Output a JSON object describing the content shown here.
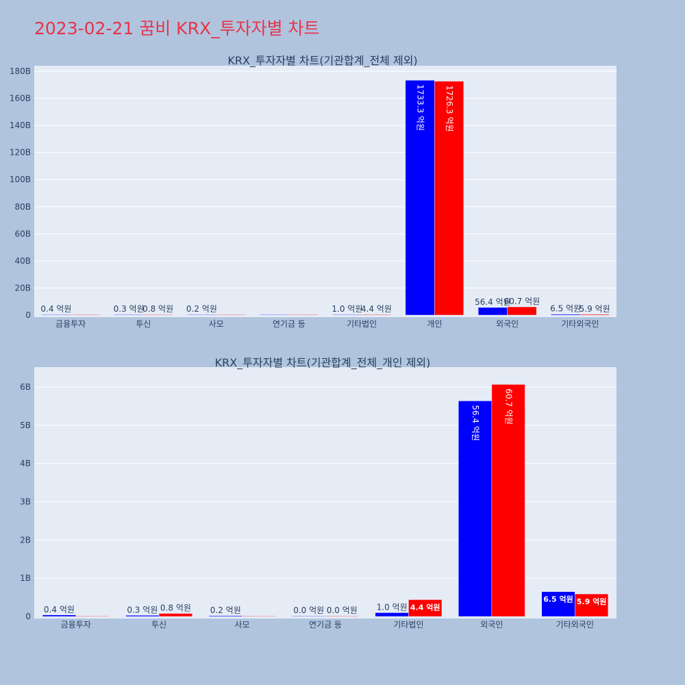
{
  "title": "2023-02-21 꿈비 KRX_투자자별 차트",
  "colors": {
    "buy": "#0000ff",
    "sell": "#ff0000",
    "plot_bg": "#e5ecf6",
    "paper_bg": "#b0c4de",
    "title": "#e8334a"
  },
  "chart_data": [
    {
      "type": "bar",
      "title": "KRX_투자자별 차트(기관합계_전체 제외)",
      "categories": [
        "금융투자",
        "투신",
        "사모",
        "연기금 등",
        "기타법인",
        "개인",
        "외국인",
        "기타외국인"
      ],
      "series": [
        {
          "color": "#0000ff",
          "values": [
            0.04,
            0.03,
            0.02,
            0,
            0.1,
            173.33,
            5.64,
            0.65
          ],
          "labels": [
            "0.4 억원",
            "0.3 억원",
            "0.2 억원",
            "",
            "1.0 억원",
            "1733.3 억원",
            "56.4 억원",
            "6.5 억원"
          ]
        },
        {
          "color": "#ff0000",
          "values": [
            0,
            0.08,
            0,
            0,
            0.44,
            172.63,
            6.07,
            0.59
          ],
          "labels": [
            "",
            "0.8 억원",
            "",
            "",
            "4.4 억원",
            "1726.3 억원",
            "60.7 억원",
            "5.9 억원"
          ]
        }
      ],
      "y_ticks": [
        "0",
        "20B",
        "40B",
        "60B",
        "80B",
        "100B",
        "120B",
        "140B",
        "160B",
        "180B"
      ],
      "y_tick_values": [
        0,
        20,
        40,
        60,
        80,
        100,
        120,
        140,
        160,
        180
      ],
      "ylim": [
        0,
        182
      ],
      "y_unit": "B"
    },
    {
      "type": "bar",
      "title": "KRX_투자자별 차트(기관합계_전체_개인 제외)",
      "categories": [
        "금융투자",
        "투신",
        "사모",
        "연기금 등",
        "기타법인",
        "외국인",
        "기타외국인"
      ],
      "series": [
        {
          "color": "#0000ff",
          "values": [
            0.04,
            0.03,
            0.02,
            0.0,
            0.1,
            5.64,
            0.65
          ],
          "labels": [
            "0.4 억원",
            "0.3 억원",
            "0.2 억원",
            "0.0 억원",
            "1.0 억원",
            "56.4 억원",
            "6.5 억원"
          ]
        },
        {
          "color": "#ff0000",
          "values": [
            0,
            0.08,
            0,
            0.0,
            0.44,
            6.07,
            0.59
          ],
          "labels": [
            "",
            "0.8 억원",
            "",
            "0.0 억원",
            "4.4 억원",
            "60.7 억원",
            "5.9 억원"
          ]
        }
      ],
      "y_ticks": [
        "0",
        "1B",
        "2B",
        "3B",
        "4B",
        "5B",
        "6B"
      ],
      "y_tick_values": [
        0,
        1,
        2,
        3,
        4,
        5,
        6
      ],
      "ylim": [
        0,
        6.45
      ],
      "y_unit": "B"
    }
  ]
}
